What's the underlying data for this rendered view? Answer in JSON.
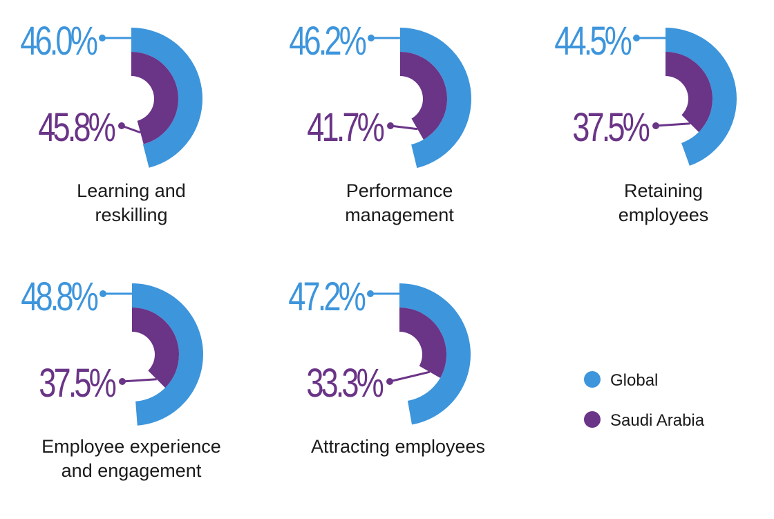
{
  "chart_data": {
    "type": "radial-bar",
    "title": "",
    "colors": {
      "global": "#3d95dc",
      "saudi": "#6a3487"
    },
    "series": [
      {
        "name": "Global",
        "key": "global"
      },
      {
        "name": "Saudi Arabia",
        "key": "saudi"
      }
    ],
    "categories": [
      {
        "label": [
          "Learning and",
          "reskilling"
        ],
        "global": 46.0,
        "saudi": 45.8,
        "global_text": "46.0%",
        "saudi_text": "45.8%"
      },
      {
        "label": [
          "Performance",
          "management"
        ],
        "global": 46.2,
        "saudi": 41.7,
        "global_text": "46.2%",
        "saudi_text": "41.7%"
      },
      {
        "label": [
          "Retaining",
          "employees"
        ],
        "global": 44.5,
        "saudi": 37.5,
        "global_text": "44.5%",
        "saudi_text": "37.5%"
      },
      {
        "label": [
          "Employee experience",
          "and engagement"
        ],
        "global": 48.8,
        "saudi": 37.5,
        "global_text": "48.8%",
        "saudi_text": "37.5%"
      },
      {
        "label": [
          "Attracting employees"
        ],
        "global": 47.2,
        "saudi": 33.3,
        "global_text": "47.2%",
        "saudi_text": "33.3%"
      }
    ],
    "legend": {
      "position": "bottom-right",
      "items": [
        "Global",
        "Saudi Arabia"
      ]
    }
  }
}
